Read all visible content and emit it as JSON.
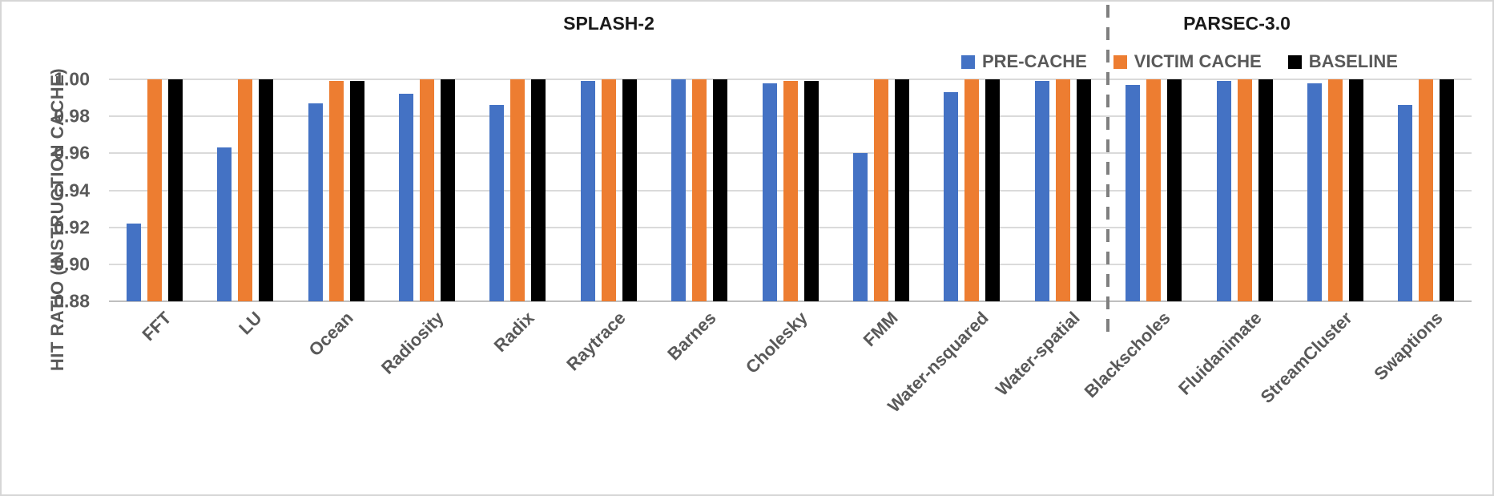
{
  "chart_data": {
    "type": "bar",
    "title_left": "SPLASH-2",
    "title_right": "PARSEC-3.0",
    "ylabel": "HIT RATIO (INSTRUCTION CACHE)",
    "ylim": [
      0.88,
      1.0
    ],
    "ytick_step": 0.02,
    "yticks": [
      "1.00",
      "0.98",
      "0.96",
      "0.94",
      "0.92",
      "0.90",
      "0.88"
    ],
    "grid": true,
    "legend_position": "top-right-inside",
    "categories": [
      "FFT",
      "LU",
      "Ocean",
      "Radiosity",
      "Radix",
      "Raytrace",
      "Barnes",
      "Cholesky",
      "FMM",
      "Water-nsquared",
      "Water-spatial",
      "Blackscholes",
      "Fluidanimate",
      "StreamCluster",
      "Swaptions"
    ],
    "series": [
      {
        "name": "PRE-CACHE",
        "color": "#4472C4",
        "values": [
          0.922,
          0.963,
          0.987,
          0.992,
          0.986,
          0.999,
          1.0,
          0.998,
          0.96,
          0.993,
          0.999,
          0.997,
          0.999,
          0.998,
          0.986
        ]
      },
      {
        "name": "VICTIM CACHE",
        "color": "#ED7D31",
        "values": [
          1.0,
          1.0,
          0.999,
          1.0,
          1.0,
          1.0,
          1.0,
          0.999,
          1.0,
          1.0,
          1.0,
          1.0,
          1.0,
          1.0,
          1.0
        ]
      },
      {
        "name": "BASELINE",
        "color": "#000000",
        "values": [
          1.0,
          1.0,
          0.999,
          1.0,
          1.0,
          1.0,
          1.0,
          0.999,
          1.0,
          1.0,
          1.0,
          1.0,
          1.0,
          1.0,
          1.0
        ]
      }
    ],
    "sections": [
      {
        "label": "SPLASH-2",
        "first_category_index": 0,
        "last_category_index": 10
      },
      {
        "label": "PARSEC-3.0",
        "first_category_index": 11,
        "last_category_index": 14
      }
    ]
  },
  "style_colors": {
    "gridline": "#dadada",
    "axis_line": "#bfbfbf",
    "axis_text": "#595959",
    "title_text": "#1a1a1a",
    "separator": "#7f7f7f"
  }
}
